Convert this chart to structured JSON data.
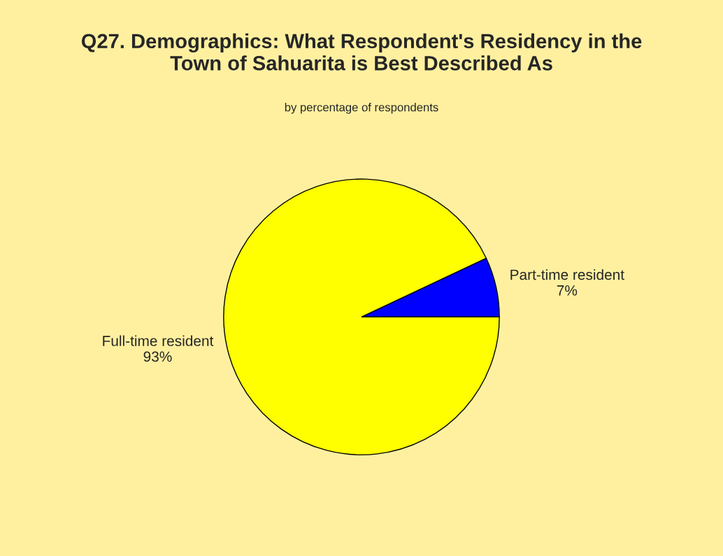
{
  "chart_data": {
    "type": "pie",
    "title": "Q27. Demographics: What Respondent's Residency in the\nTown of Sahuarita is Best Described As",
    "subtitle": "by percentage of respondents",
    "categories": [
      "Part-time resident",
      "Full-time resident"
    ],
    "values": [
      7,
      93
    ],
    "colors": [
      "#0000ff",
      "#ffff00"
    ],
    "value_labels": [
      "7%",
      "93%"
    ],
    "legend": false
  }
}
